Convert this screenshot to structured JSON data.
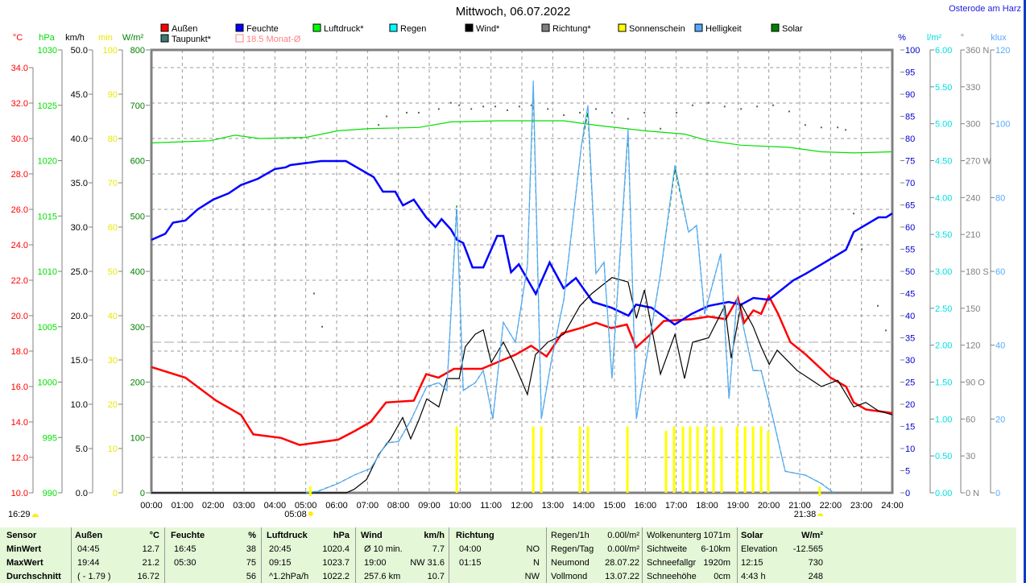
{
  "title": "Mittwoch, 06.07.2022",
  "location": "Osterode am Harz",
  "legend": [
    {
      "label": "Außen",
      "color": "#ff0000"
    },
    {
      "label": "Feuchte",
      "color": "#0000ff"
    },
    {
      "label": "Luftdruck*",
      "color": "#00ff00"
    },
    {
      "label": "Regen",
      "color": "#00ffff"
    },
    {
      "label": "Wind*",
      "color": "#000000"
    },
    {
      "label": "Richtung*",
      "color": "#808080"
    },
    {
      "label": "Sonnenschein",
      "color": "#ffff00"
    },
    {
      "label": "Helligkeit",
      "color": "#55aaff"
    },
    {
      "label": "Solar",
      "color": "#008000"
    },
    {
      "label": "Taupunkt*",
      "color": "#3a7a72"
    },
    {
      "label": "18.5 Monat-Ø",
      "color": "#ff8080"
    }
  ],
  "bottom_left_time": "16:29",
  "sunrise": "05:08",
  "sunset": "21:38",
  "chart_data": {
    "type": "line",
    "title": "Mittwoch, 06.07.2022",
    "x_ticks": [
      "00:00",
      "01:00",
      "02:00",
      "03:00",
      "04:00",
      "05:00",
      "06:00",
      "07:00",
      "08:00",
      "09:00",
      "10:00",
      "11:00",
      "12:00",
      "13:00",
      "14:00",
      "15:00",
      "16:00",
      "17:00",
      "18:00",
      "19:00",
      "20:00",
      "21:00",
      "22:00",
      "23:00",
      "24:00"
    ],
    "xlim": [
      0,
      24
    ],
    "grid": true,
    "axes": {
      "temp": {
        "unit": "°C",
        "color": "#ff0000",
        "range": [
          10,
          35
        ],
        "ticks": [
          "10.0",
          "12.0",
          "14.0",
          "16.0",
          "18.0",
          "20.0",
          "22.0",
          "24.0",
          "26.0",
          "28.0",
          "30.0",
          "32.0",
          "34.0"
        ]
      },
      "pressure": {
        "unit": "hPa",
        "color": "#00e000",
        "range": [
          990,
          1030
        ],
        "ticks": [
          "990",
          "995",
          "1000",
          "1005",
          "1010",
          "1015",
          "1020",
          "1025",
          "1030"
        ]
      },
      "wind": {
        "unit": "km/h",
        "color": "#000000",
        "range": [
          0,
          50
        ],
        "ticks": [
          "0.0",
          "5.0",
          "10.0",
          "15.0",
          "20.0",
          "25.0",
          "30.0",
          "35.0",
          "40.0",
          "45.0",
          "50.0"
        ]
      },
      "sunshine": {
        "unit": "min",
        "color": "#e8e800",
        "range": [
          0,
          100
        ],
        "ticks": [
          "0",
          "10",
          "20",
          "30",
          "40",
          "50",
          "60",
          "70",
          "80",
          "90",
          "100"
        ]
      },
      "solar": {
        "unit": "W/m²",
        "color": "#008000",
        "range": [
          0,
          800
        ],
        "ticks": [
          "0",
          "100",
          "200",
          "300",
          "400",
          "500",
          "600",
          "700",
          "800"
        ]
      },
      "humidity": {
        "unit": "%",
        "color": "#0000cc",
        "range": [
          0,
          100
        ],
        "ticks": [
          "0",
          "5",
          "10",
          "15",
          "20",
          "25",
          "30",
          "35",
          "40",
          "45",
          "50",
          "55",
          "60",
          "65",
          "70",
          "75",
          "80",
          "85",
          "90",
          "95",
          "100"
        ]
      },
      "rain": {
        "unit": "l/m²",
        "color": "#00e0e0",
        "range": [
          0,
          6
        ],
        "ticks": [
          "0.00",
          "0.50",
          "1.00",
          "1.50",
          "2.00",
          "2.50",
          "3.00",
          "3.50",
          "4.00",
          "4.50",
          "5.00",
          "5.50",
          "6.00"
        ]
      },
      "direction": {
        "unit": "°",
        "color": "#808080",
        "range": [
          0,
          360
        ],
        "ticks": [
          "0   N",
          "30",
          "60",
          "90  O",
          "120",
          "150",
          "180 S",
          "210",
          "240",
          "270 W",
          "300",
          "330",
          "360 N"
        ]
      },
      "brightness": {
        "unit": "klux",
        "color": "#55aaff",
        "range": [
          0,
          120
        ],
        "ticks": [
          "0",
          "20",
          "40",
          "60",
          "80",
          "100",
          "120"
        ]
      }
    },
    "monthly_avg_temp": 18.5,
    "series": [
      {
        "name": "Außen",
        "axis": "temp",
        "color": "#ff0000",
        "t": [
          0,
          1.1,
          2.1,
          2.9,
          3.3,
          4.2,
          4.8,
          6.05,
          6.6,
          7.1,
          7.6,
          8.5,
          8.9,
          9.3,
          9.8,
          10.7,
          11.8,
          12.3,
          12.8,
          13.3,
          13.9,
          14.4,
          14.9,
          15.4,
          15.7,
          16.2,
          16.6,
          17.5,
          18.05,
          18.6,
          19.0,
          19.2,
          19.5,
          19.75,
          20.0,
          20.3,
          20.7,
          21.2,
          22.0,
          22.5,
          22.75,
          23.15,
          24
        ],
        "v": [
          17.1,
          16.5,
          15.2,
          14.4,
          13.3,
          13.1,
          12.7,
          13.0,
          13.5,
          14.0,
          15.1,
          15.2,
          16.7,
          16.5,
          17.0,
          17.0,
          17.8,
          18.3,
          17.7,
          19.0,
          19.3,
          19.6,
          19.3,
          19.5,
          18.2,
          19.0,
          19.7,
          19.8,
          19.95,
          19.8,
          21.0,
          19.6,
          20.3,
          20.1,
          21.1,
          20.1,
          18.5,
          17.8,
          16.5,
          16.0,
          15.1,
          14.7,
          14.5
        ]
      },
      {
        "name": "Feuchte",
        "axis": "humidity",
        "color": "#0000ff",
        "t": [
          0,
          0.45,
          0.7,
          1.1,
          1.5,
          2.0,
          2.5,
          2.9,
          3.45,
          4.0,
          4.35,
          4.5,
          5.5,
          6.3,
          7.2,
          7.5,
          7.9,
          8.15,
          8.5,
          8.9,
          9.2,
          9.4,
          9.7,
          9.9,
          10.1,
          10.4,
          10.75,
          11.2,
          11.4,
          11.65,
          11.9,
          12.45,
          12.9,
          13.35,
          13.75,
          14.3,
          14.9,
          15.45,
          15.7,
          16.2,
          16.95,
          17.5,
          18.05,
          18.7,
          19.1,
          19.5,
          20.0,
          20.8,
          21.2,
          22.5,
          22.75,
          23.55,
          23.8,
          24
        ],
        "v": [
          57.1,
          58.5,
          61,
          61.5,
          64,
          66.2,
          67.6,
          69.5,
          70.9,
          73.1,
          73.5,
          74,
          74.9,
          74.9,
          71.3,
          68,
          68,
          64.9,
          66.2,
          62.2,
          60,
          61.8,
          59.5,
          57.1,
          56.4,
          50.9,
          50.9,
          58,
          58,
          49.8,
          51.6,
          44.9,
          52,
          46.2,
          48.5,
          43.1,
          41.8,
          40,
          42.5,
          41.8,
          38,
          40.4,
          42.2,
          43.1,
          42.5,
          44,
          43.6,
          48,
          49.5,
          54.9,
          58.9,
          62.2,
          62.2,
          63.1
        ]
      },
      {
        "name": "Luftdruck*",
        "axis": "pressure",
        "color": "#00e000",
        "t": [
          0,
          1.9,
          2.7,
          3.5,
          5.0,
          6.05,
          7.1,
          8.66,
          9.7,
          11.27,
          13.36,
          14.4,
          15.97,
          17.27,
          18.05,
          19.1,
          20.66,
          21.7,
          22.75,
          24
        ],
        "v": [
          1021.6,
          1021.8,
          1022.3,
          1022.0,
          1022.1,
          1022.7,
          1022.9,
          1023.0,
          1023.5,
          1023.6,
          1023.6,
          1023.2,
          1022.7,
          1022.4,
          1021.8,
          1021.4,
          1021.2,
          1020.8,
          1020.7,
          1020.8
        ]
      },
      {
        "name": "Wind*",
        "axis": "wind",
        "color": "#000000",
        "t": [
          0,
          6.31,
          6.57,
          6.97,
          7.36,
          7.75,
          8.14,
          8.4,
          8.66,
          8.92,
          9.31,
          9.57,
          9.97,
          10.17,
          10.49,
          10.75,
          11.01,
          11.4,
          11.74,
          12.18,
          12.44,
          12.84,
          13.36,
          13.88,
          14.27,
          14.92,
          15.44,
          15.71,
          15.97,
          16.49,
          16.96,
          17.27,
          17.53,
          18.05,
          18.57,
          18.78,
          19.1,
          19.49,
          19.75,
          20.01,
          20.27,
          20.92,
          21.7,
          22.23,
          22.75,
          23.14,
          23.53,
          24
        ],
        "v": [
          0,
          0,
          0.4,
          1.5,
          4.3,
          6.1,
          8.5,
          6.1,
          8.2,
          10.6,
          9.7,
          12.9,
          12.9,
          16.5,
          17.9,
          18.4,
          14.7,
          17,
          14.7,
          11.1,
          15.6,
          17,
          17.9,
          21.1,
          22.5,
          24.3,
          23.8,
          19.7,
          22.9,
          13.4,
          17.9,
          12.9,
          17,
          17.5,
          21.1,
          15.2,
          21.3,
          18.8,
          16.5,
          14.5,
          16.1,
          13.8,
          12,
          12.7,
          9.7,
          10.2,
          9.3,
          8.8
        ]
      },
      {
        "name": "Solar",
        "axis": "solar",
        "color": "#008000",
        "t": [
          5.01,
          5.4,
          6.05,
          6.57,
          7.1,
          7.62,
          8.01,
          8.4,
          8.92,
          9.31,
          9.57,
          9.89,
          10.1,
          10.49,
          10.75,
          11.06,
          11.4,
          11.79,
          12.18,
          12.37,
          12.63,
          12.97,
          13.36,
          13.93,
          14.14,
          14.4,
          14.66,
          14.92,
          15.44,
          15.71,
          15.97,
          16.49,
          16.96,
          17.4,
          17.66,
          17.92,
          18.44,
          18.71,
          18.97,
          19.49,
          19.75,
          20.14,
          20.53,
          21.18,
          21.7,
          22.1
        ],
        "v": [
          0,
          3,
          17,
          32,
          44,
          90,
          93,
          131,
          192,
          199,
          185,
          519,
          185,
          199,
          221,
          134,
          308,
          272,
          410,
          730,
          134,
          243,
          349,
          628,
          687,
          396,
          417,
          207,
          651,
          134,
          221,
          396,
          585,
          471,
          483,
          323,
          432,
          170,
          352,
          221,
          221,
          134,
          39,
          32,
          17,
          0
        ]
      },
      {
        "name": "Helligkeit",
        "axis": "brightness",
        "color": "#55aaff",
        "t": [
          5.01,
          5.4,
          6.05,
          6.57,
          7.1,
          7.62,
          8.01,
          8.4,
          8.92,
          9.31,
          9.57,
          9.89,
          10.1,
          10.49,
          10.75,
          11.06,
          11.4,
          11.79,
          12.18,
          12.37,
          12.63,
          12.97,
          13.36,
          13.93,
          14.14,
          14.4,
          14.66,
          14.92,
          15.44,
          15.71,
          15.97,
          16.49,
          16.96,
          17.4,
          17.66,
          17.92,
          18.44,
          18.71,
          18.97,
          19.49,
          19.75,
          20.14,
          20.53,
          21.18,
          21.7,
          22.1
        ],
        "v": [
          0,
          0.4,
          2.5,
          4.8,
          6.6,
          13.5,
          13.9,
          19.6,
          28.8,
          29.8,
          27.7,
          77,
          27.7,
          29.8,
          33.1,
          20,
          46.2,
          40.8,
          61.5,
          111.7,
          20,
          36.4,
          52.3,
          94.2,
          105,
          59.4,
          62.5,
          31,
          98.6,
          20,
          33.1,
          59.4,
          88.8,
          70.6,
          72.4,
          48.4,
          64.8,
          25.5,
          52.8,
          33.1,
          33.1,
          20,
          5.8,
          4.8,
          2.5,
          0
        ]
      }
    ],
    "direction_points": {
      "name": "Richtung*",
      "axis": "direction",
      "color": "#606060",
      "t": [
        5.27,
        5.53,
        7.36,
        7.62,
        8.27,
        8.66,
        9.31,
        9.7,
        9.97,
        10.36,
        10.75,
        11.14,
        11.53,
        11.92,
        12.31,
        12.84,
        13.36,
        13.88,
        14.4,
        14.92,
        15.44,
        15.97,
        16.49,
        17.01,
        17.53,
        18.05,
        18.57,
        19.1,
        19.62,
        20.14,
        20.66,
        21.18,
        21.7,
        22.23,
        22.49,
        22.75,
        23.01,
        23.53,
        23.79
      ],
      "v": [
        162,
        135,
        299,
        306,
        309,
        309,
        312,
        317,
        315,
        312,
        314,
        314,
        311,
        314,
        315,
        312,
        307,
        309,
        312,
        309,
        304,
        309,
        296,
        309,
        315,
        317,
        314,
        312,
        314,
        315,
        310,
        299,
        297,
        297,
        295,
        227,
        198,
        152,
        132
      ]
    },
    "sunshine_bars": {
      "name": "Sonnenschein",
      "axis": "sunshine",
      "color": "#ffff00",
      "t": [
        9.89,
        12.37,
        12.63,
        13.88,
        14.14,
        15.42,
        16.67,
        16.93,
        17.22,
        17.45,
        17.69,
        17.95,
        18.21,
        18.47,
        18.97,
        19.23,
        19.49,
        19.75,
        19.98
      ],
      "v": [
        15,
        15,
        15,
        15,
        15,
        15,
        14,
        15,
        15,
        15,
        15,
        15,
        15,
        15,
        15,
        15,
        15,
        15,
        14
      ]
    }
  },
  "table": {
    "headers": [
      "Sensor",
      "Außen",
      "°C",
      "Feuchte",
      "%",
      "Luftdruck",
      "hPa",
      "Wind",
      "km/h",
      "Richtung"
    ],
    "rows": [
      {
        "label": "MinWert",
        "aussen_time": "04:45",
        "aussen_val": "12.7",
        "feuchte_time": "16:45",
        "feuchte_val": "38",
        "druck_time": "20:45",
        "druck_val": "1020.4",
        "wind_a": "Ø 10 min.",
        "wind_b": "7.7",
        "richt_time": "04:00",
        "richt_dir": "NO"
      },
      {
        "label": "MaxWert",
        "aussen_time": "19:44",
        "aussen_val": "21.2",
        "feuchte_time": "05:30",
        "feuchte_val": "75",
        "druck_time": "09:15",
        "druck_val": "1023.7",
        "wind_a": "19:00",
        "wind_b": "NW 31.6",
        "richt_time": "01:15",
        "richt_dir": "N"
      },
      {
        "label": "Durchschnitt",
        "aussen_time": "( - 1.79 )",
        "aussen_val": "16.72",
        "feuchte_time": "",
        "feuchte_val": "56",
        "druck_time": "^1.2hPa/h",
        "druck_val": "1022.2",
        "wind_a": "257.6 km",
        "wind_b": "10.7",
        "richt_time": "",
        "richt_dir": "NW"
      }
    ],
    "extra": [
      {
        "a": "Regen/1h",
        "b": "0.00l/m²",
        "c": "Wolkenunterg",
        "d": "1071m",
        "e": "Solar",
        "f": "W/m²"
      },
      {
        "a": "Regen/Tag",
        "b": "0.00l/m²",
        "c": "Sichtweite",
        "d": "6-10km",
        "e": "Elevation",
        "f": "-12.565"
      },
      {
        "a": "Neumond",
        "b": "28.07.22",
        "c": "Schneefallgr",
        "d": "1920m",
        "e": "12:15",
        "f": "730"
      },
      {
        "a": "Vollmond",
        "b": "13.07.22",
        "c": "Schneehöhe",
        "d": "0cm",
        "e": "4:43 h",
        "f": "248"
      }
    ]
  }
}
